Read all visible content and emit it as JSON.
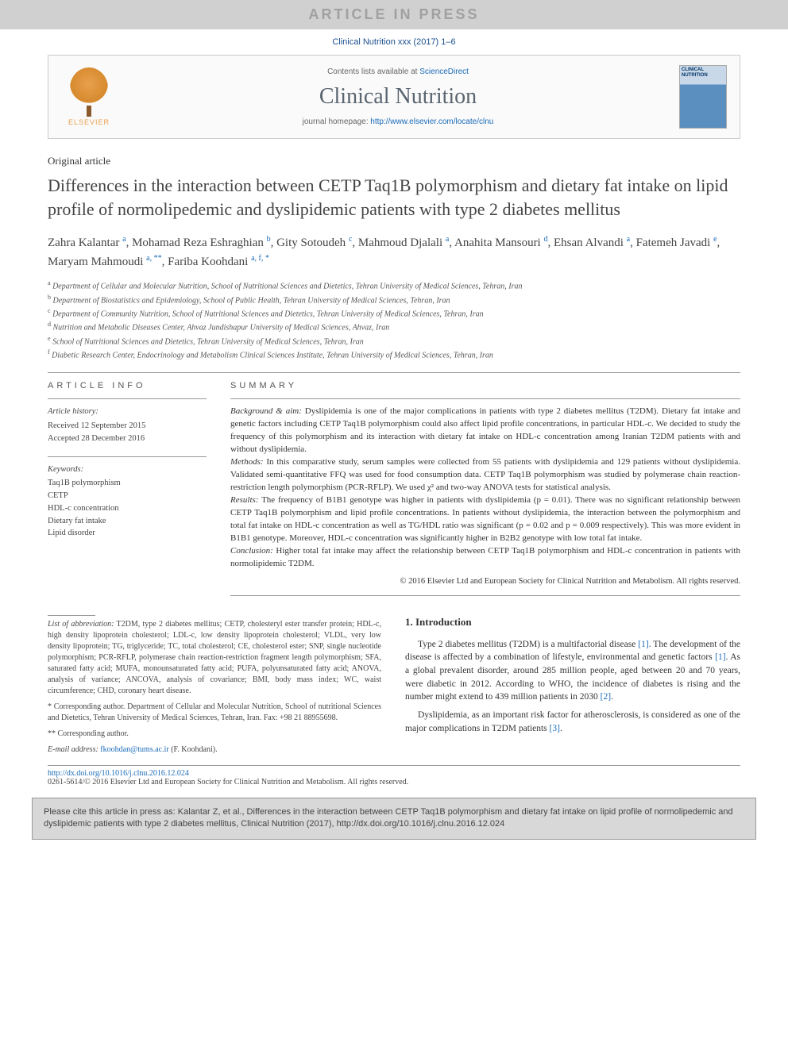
{
  "banner": "ARTICLE IN PRESS",
  "journal_ref": "Clinical Nutrition xxx (2017) 1–6",
  "header": {
    "contents_pre": "Contents lists available at ",
    "contents_link": "ScienceDirect",
    "journal_name": "Clinical Nutrition",
    "homepage_pre": "journal homepage: ",
    "homepage_link": "http://www.elsevier.com/locate/clnu",
    "elsevier": "ELSEVIER"
  },
  "article_type": "Original article",
  "title": "Differences in the interaction between CETP Taq1B polymorphism and dietary fat intake on lipid profile of normolipedemic and dyslipidemic patients with type 2 diabetes mellitus",
  "authors_html": "Zahra Kalantar <sup>a</sup>, Mohamad Reza Eshraghian <sup>b</sup>, Gity Sotoudeh <sup>c</sup>, Mahmoud Djalali <sup>a</sup>, Anahita Mansouri <sup>d</sup>, Ehsan Alvandi <sup>a</sup>, Fatemeh Javadi <sup>e</sup>, Maryam Mahmoudi <sup>a, **</sup>, Fariba Koohdani <sup>a, f, *</sup>",
  "affiliations": [
    {
      "sup": "a",
      "text": "Department of Cellular and Molecular Nutrition, School of Nutritional Sciences and Dietetics, Tehran University of Medical Sciences, Tehran, Iran"
    },
    {
      "sup": "b",
      "text": "Department of Biostatistics and Epidemiology, School of Public Health, Tehran University of Medical Sciences, Tehran, Iran"
    },
    {
      "sup": "c",
      "text": "Department of Community Nutrition, School of Nutritional Sciences and Dietetics, Tehran University of Medical Sciences, Tehran, Iran"
    },
    {
      "sup": "d",
      "text": "Nutrition and Metabolic Diseases Center, Ahvaz Jundishapur University of Medical Sciences, Ahvaz, Iran"
    },
    {
      "sup": "e",
      "text": "School of Nutritional Sciences and Dietetics, Tehran University of Medical Sciences, Tehran, Iran"
    },
    {
      "sup": "f",
      "text": "Diabetic Research Center, Endocrinology and Metabolism Clinical Sciences Institute, Tehran University of Medical Sciences, Tehran, Iran"
    }
  ],
  "article_info_label": "ARTICLE INFO",
  "summary_label": "SUMMARY",
  "history": {
    "hdr": "Article history:",
    "received": "Received 12 September 2015",
    "accepted": "Accepted 28 December 2016"
  },
  "keywords": {
    "hdr": "Keywords:",
    "items": [
      "Taq1B polymorphism",
      "CETP",
      "HDL-c concentration",
      "Dietary fat intake",
      "Lipid disorder"
    ]
  },
  "summary": {
    "background_hdr": "Background & aim:",
    "background": " Dyslipidemia is one of the major complications in patients with type 2 diabetes mellitus (T2DM). Dietary fat intake and genetic factors including CETP Taq1B polymorphism could also affect lipid profile concentrations, in particular HDL-c. We decided to study the frequency of this polymorphism and its interaction with dietary fat intake on HDL-c concentration among Iranian T2DM patients with and without dyslipidemia.",
    "methods_hdr": "Methods:",
    "methods": " In this comparative study, serum samples were collected from 55 patients with dyslipidemia and 129 patients without dyslipidemia. Validated semi-quantitative FFQ was used for food consumption data. CETP Taq1B polymorphism was studied by polymerase chain reaction-restriction length polymorphism (PCR-RFLP). We used χ² and two-way ANOVA tests for statistical analysis.",
    "results_hdr": "Results:",
    "results": " The frequency of B1B1 genotype was higher in patients with dyslipidemia (p = 0.01). There was no significant relationship between CETP Taq1B polymorphism and lipid profile concentrations. In patients without dyslipidemia, the interaction between the polymorphism and total fat intake on HDL-c concentration as well as TG/HDL ratio was significant (p = 0.02 and p = 0.009 respectively). This was more evident in B1B1 genotype. Moreover, HDL-c concentration was significantly higher in B2B2 genotype with low total fat intake.",
    "conclusion_hdr": "Conclusion:",
    "conclusion": " Higher total fat intake may affect the relationship between CETP Taq1B polymorphism and HDL-c concentration in patients with normolipidemic T2DM.",
    "copyright": "© 2016 Elsevier Ltd and European Society for Clinical Nutrition and Metabolism. All rights reserved."
  },
  "abbrev": {
    "hdr": "List of abbreviation:",
    "text": " T2DM, type 2 diabetes mellitus; CETP, cholesteryl ester transfer protein; HDL-c, high density lipoprotein cholesterol; LDL-c, low density lipoprotein cholesterol; VLDL, very low density lipoprotein; TG, triglyceride; TC, total cholesterol; CE, cholesterol ester; SNP, single nucleotide polymorphism; PCR-RFLP, polymerase chain reaction-restriction fragment length polymorphism; SFA, saturated fatty acid; MUFA, monounsaturated fatty acid; PUFA, polyunsaturated fatty acid; ANOVA, analysis of variance; ANCOVA, analysis of covariance; BMI, body mass index; WC, waist circumference; CHD, coronary heart disease."
  },
  "corr1": "* Corresponding author. Department of Cellular and Molecular Nutrition, School of nutritional Sciences and Dietetics, Tehran University of Medical Sciences, Tehran, Iran. Fax: +98 21 88955698.",
  "corr2": "** Corresponding author.",
  "email_hdr": "E-mail address:",
  "email": "fkoohdan@tums.ac.ir",
  "email_suffix": " (F. Koohdani).",
  "intro": {
    "hdr": "1. Introduction",
    "p1_pre": "Type 2 diabetes mellitus (T2DM) is a multifactorial disease ",
    "ref1": "[1]",
    "p1_mid": ". The development of the disease is affected by a combination of lifestyle, environmental and genetic factors ",
    "p1_post": ". As a global prevalent disorder, around 285 million people, aged between 20 and 70 years, were diabetic in 2012. According to WHO, the incidence of diabetes is rising and the number might extend to 439 million patients in 2030 ",
    "ref2": "[2]",
    "p1_end": ".",
    "p2_pre": "Dyslipidemia, as an important risk factor for atherosclerosis, is considered as one of the major complications in T2DM patients ",
    "ref3": "[3]",
    "p2_end": "."
  },
  "footer": {
    "doi": "http://dx.doi.org/10.1016/j.clnu.2016.12.024",
    "issn": "0261-5614/© 2016 Elsevier Ltd and European Society for Clinical Nutrition and Metabolism. All rights reserved."
  },
  "cite": "Please cite this article in press as: Kalantar Z, et al., Differences in the interaction between CETP Taq1B polymorphism and dietary fat intake on lipid profile of normolipedemic and dyslipidemic patients with type 2 diabetes mellitus, Clinical Nutrition (2017), http://dx.doi.org/10.1016/j.clnu.2016.12.024"
}
